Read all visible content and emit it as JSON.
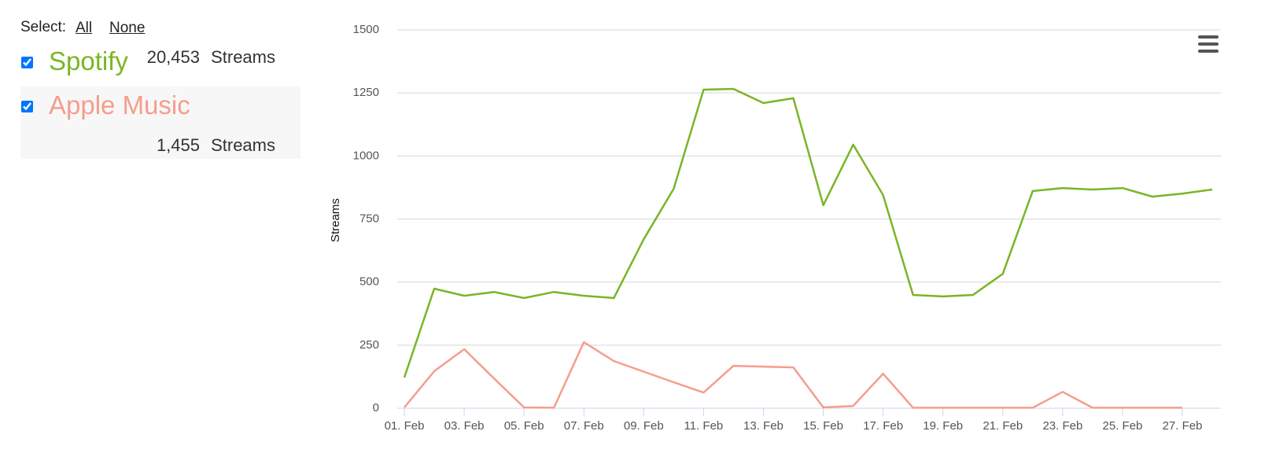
{
  "sidebar": {
    "select_label": "Select:",
    "all": "All",
    "none": "None",
    "totals": [
      "20,453",
      "1,455"
    ],
    "unit": "Streams"
  },
  "chart_data": {
    "type": "line",
    "y_label": "Streams",
    "categories": [
      "01. Feb",
      null,
      "03. Feb",
      null,
      "05. Feb",
      null,
      "07. Feb",
      null,
      "09. Feb",
      null,
      "11. Feb",
      null,
      "13. Feb",
      null,
      "15. Feb",
      null,
      "17. Feb",
      null,
      "19. Feb",
      null,
      "21. Feb",
      null,
      "23. Feb",
      null,
      "25. Feb",
      null,
      "27. Feb",
      null
    ],
    "series": [
      {
        "name": "Spotify",
        "color": "#7ab526",
        "values": [
          122,
          474,
          446,
          461,
          437,
          461,
          446,
          437,
          670,
          870,
          1263,
          1266,
          1210,
          1229,
          805,
          1045,
          845,
          449,
          443,
          449,
          533,
          861,
          873,
          867,
          873,
          839,
          851,
          867
        ]
      },
      {
        "name": "Apple Music",
        "color": "#f59d8d",
        "values": [
          3,
          147,
          234,
          118,
          3,
          2,
          262,
          187,
          145,
          103,
          62,
          168,
          165,
          162,
          3,
          9,
          137,
          2,
          2,
          2,
          2,
          2,
          65,
          2,
          2,
          2,
          2,
          null
        ]
      }
    ],
    "ylim": [
      0,
      1500
    ],
    "yticks": [
      0,
      250,
      500,
      750,
      1000,
      1250,
      1500
    ],
    "grid": true
  }
}
